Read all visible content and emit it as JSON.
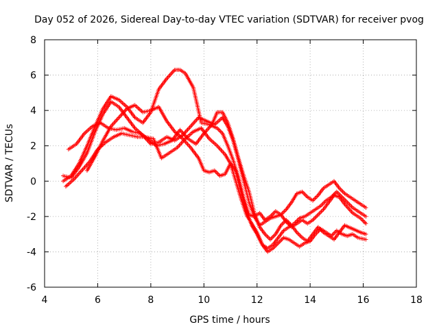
{
  "chart_data": {
    "type": "scatter",
    "title": "Day 052 of 2026, Sidereal Day-to-day VTEC variation (SDTVAR) for receiver pvog",
    "xlabel": "GPS time / hours",
    "ylabel": "SDTVAR / TECUs",
    "xlim": [
      4,
      18
    ],
    "ylim": [
      -6,
      8
    ],
    "xticks": [
      "4",
      "6",
      "8",
      "10",
      "12",
      "14",
      "16",
      "18"
    ],
    "yticks": [
      "-6",
      "-4",
      "-2",
      "0",
      "2",
      "4",
      "6",
      "8"
    ],
    "grid": true,
    "legend": "none",
    "marker": "+",
    "color": "#ff0000",
    "series": [
      {
        "name": "track-1",
        "x": [
          4.7,
          5.0,
          5.3,
          5.6,
          5.9,
          6.2,
          6.5,
          6.8,
          7.1,
          7.4,
          7.7,
          8.0,
          8.3,
          8.6,
          8.9,
          9.1,
          9.3,
          9.6,
          9.9,
          10.2,
          10.5,
          10.7,
          10.9,
          11.1,
          11.3,
          11.5,
          11.7,
          11.9,
          12.1,
          12.3,
          12.5,
          12.7,
          12.9,
          13.1,
          13.3,
          13.5,
          13.7,
          13.9,
          14.1,
          14.3,
          14.5,
          14.7,
          14.9,
          15.1,
          15.3,
          15.6,
          15.9,
          16.1
        ],
        "y": [
          0.0,
          0.3,
          1.0,
          2.0,
          3.1,
          4.1,
          4.8,
          4.6,
          4.2,
          3.6,
          3.3,
          3.9,
          5.2,
          5.8,
          6.3,
          6.3,
          6.1,
          5.3,
          3.3,
          3.2,
          3.0,
          2.7,
          2.0,
          1.2,
          0.2,
          -1.0,
          -1.9,
          -2.0,
          -1.8,
          -2.2,
          -2.0,
          -1.7,
          -1.9,
          -1.6,
          -1.2,
          -0.7,
          -0.6,
          -0.9,
          -1.1,
          -0.8,
          -0.4,
          -0.2,
          0.0,
          -0.4,
          -0.7,
          -1.0,
          -1.3,
          -1.5
        ]
      },
      {
        "name": "track-2",
        "x": [
          4.7,
          5.0,
          5.3,
          5.6,
          5.9,
          6.2,
          6.5,
          6.8,
          7.1,
          7.4,
          7.7,
          8.0,
          8.3,
          8.6,
          8.9,
          9.2,
          9.5,
          9.8,
          10.1,
          10.4,
          10.7,
          10.9,
          11.1,
          11.3,
          11.5,
          11.7,
          11.9,
          12.1,
          12.3,
          12.5,
          12.7,
          12.9,
          13.1,
          13.3,
          13.5,
          13.7,
          13.9,
          14.1,
          14.3,
          14.5,
          14.7,
          14.9,
          15.1,
          15.3,
          15.6,
          15.9,
          16.1
        ],
        "y": [
          0.3,
          0.2,
          0.8,
          1.6,
          2.8,
          3.8,
          4.5,
          4.2,
          3.6,
          3.0,
          2.6,
          2.1,
          2.2,
          2.5,
          2.3,
          2.6,
          3.1,
          3.6,
          3.4,
          3.2,
          3.6,
          3.1,
          2.3,
          1.2,
          0.0,
          -1.2,
          -2.0,
          -2.5,
          -2.3,
          -2.1,
          -2.0,
          -1.9,
          -2.3,
          -2.6,
          -2.4,
          -2.2,
          -2.4,
          -2.2,
          -1.9,
          -1.6,
          -1.2,
          -0.8,
          -0.9,
          -1.3,
          -1.8,
          -2.1,
          -2.4
        ]
      },
      {
        "name": "track-3",
        "x": [
          4.9,
          5.2,
          5.5,
          5.8,
          6.1,
          6.4,
          6.7,
          7.0,
          7.3,
          7.6,
          7.9,
          8.2,
          8.5,
          8.8,
          9.1,
          9.4,
          9.7,
          10.0,
          10.3,
          10.5,
          10.7,
          10.9,
          11.1,
          11.3,
          11.5,
          11.7,
          11.9,
          12.1,
          12.3,
          12.5,
          12.7,
          12.9,
          13.1,
          13.3,
          13.5,
          13.7,
          13.9,
          14.1,
          14.3,
          14.5,
          14.7,
          14.9,
          15.1,
          15.3,
          15.6,
          15.9,
          16.1
        ],
        "y": [
          1.8,
          2.1,
          2.7,
          3.1,
          3.3,
          3.0,
          2.9,
          3.0,
          2.8,
          2.7,
          2.4,
          2.0,
          2.1,
          2.3,
          2.9,
          2.4,
          2.1,
          2.7,
          3.2,
          3.9,
          3.9,
          3.3,
          2.4,
          1.3,
          0.3,
          -0.6,
          -1.8,
          -2.6,
          -3.0,
          -3.3,
          -3.0,
          -2.5,
          -2.2,
          -2.5,
          -2.9,
          -3.2,
          -3.4,
          -3.0,
          -2.6,
          -2.9,
          -3.1,
          -3.3,
          -2.9,
          -2.5,
          -2.7,
          -2.9,
          -3.0
        ]
      },
      {
        "name": "track-4",
        "x": [
          5.6,
          5.9,
          6.2,
          6.5,
          6.8,
          7.1,
          7.4,
          7.7,
          8.0,
          8.3,
          8.6,
          8.9,
          9.2,
          9.5,
          9.8,
          10.0,
          10.2,
          10.4,
          10.6,
          10.8,
          11.0,
          11.2,
          11.4,
          11.6,
          11.8,
          12.0,
          12.2,
          12.4,
          12.6,
          12.8,
          13.0,
          13.2,
          13.4,
          13.6,
          13.8,
          14.0,
          14.2,
          14.4,
          14.6,
          14.8,
          15.0,
          15.2,
          15.4,
          15.6,
          15.8,
          16.1
        ],
        "y": [
          0.6,
          1.4,
          2.3,
          3.1,
          3.6,
          4.1,
          4.3,
          3.9,
          4.0,
          4.2,
          3.4,
          2.8,
          2.4,
          1.9,
          1.3,
          0.6,
          0.5,
          0.6,
          0.3,
          0.4,
          1.0,
          0.6,
          -0.6,
          -1.7,
          -2.5,
          -3.0,
          -3.6,
          -4.0,
          -3.8,
          -3.5,
          -3.2,
          -3.3,
          -3.5,
          -3.7,
          -3.5,
          -3.4,
          -3.0,
          -2.7,
          -2.9,
          -3.1,
          -2.8,
          -3.0,
          -3.1,
          -3.0,
          -3.2,
          -3.3
        ]
      },
      {
        "name": "track-5",
        "x": [
          4.8,
          5.1,
          5.4,
          5.7,
          6.0,
          6.3,
          6.6,
          6.9,
          7.2,
          7.5,
          7.8,
          8.1,
          8.4,
          8.7,
          9.0,
          9.3,
          9.6,
          9.9,
          10.2,
          10.5,
          10.8,
          11.0,
          11.2,
          11.4,
          11.6,
          11.8,
          12.0,
          12.2,
          12.4,
          12.6,
          12.8,
          13.0,
          13.2,
          13.4,
          13.6,
          13.8,
          14.0,
          14.2,
          14.4,
          14.6,
          14.8,
          15.0,
          15.2,
          15.4,
          15.6,
          15.8,
          16.0,
          16.1
        ],
        "y": [
          -0.3,
          0.1,
          0.6,
          1.1,
          1.8,
          2.2,
          2.5,
          2.7,
          2.6,
          2.5,
          2.5,
          2.4,
          1.3,
          1.6,
          1.9,
          2.4,
          2.8,
          3.0,
          2.4,
          2.0,
          1.5,
          1.0,
          0.0,
          -1.0,
          -1.9,
          -2.4,
          -2.9,
          -3.6,
          -3.8,
          -3.6,
          -3.2,
          -2.8,
          -2.6,
          -2.4,
          -2.1,
          -2.0,
          -1.8,
          -1.6,
          -1.4,
          -1.1,
          -0.9,
          -0.6,
          -0.9,
          -1.2,
          -1.5,
          -1.7,
          -1.9,
          -2.0
        ]
      }
    ]
  }
}
